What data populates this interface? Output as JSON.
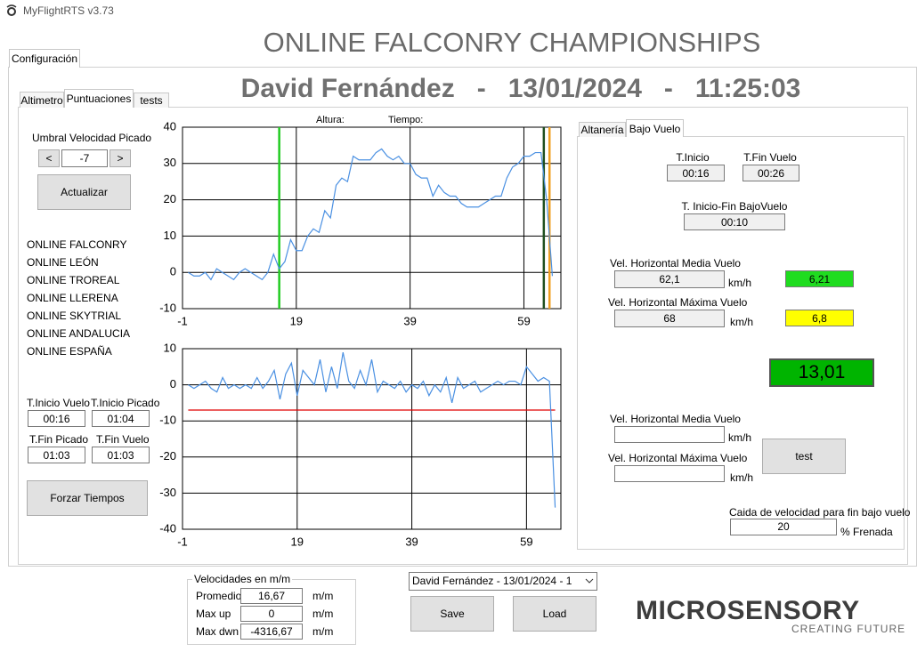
{
  "window": {
    "title": "MyFlightRTS v3.73"
  },
  "header": {
    "title": "ONLINE FALCONRY CHAMPIONSHIPS",
    "subtitle": "David Fernández   -   13/01/2024   -   11:25:03"
  },
  "main_tab": "Configuración",
  "tabs": [
    "Altimetro",
    "Puntuaciones",
    "tests"
  ],
  "left": {
    "threshold_label": "Umbral Velocidad Picado",
    "prev": "<",
    "threshold": "-7",
    "next": ">",
    "update": "Actualizar",
    "competitions": [
      "ONLINE FALCONRY",
      "ONLINE LEÓN",
      "ONLINE TROREAL",
      "ONLINE LLERENA",
      "ONLINE SKYTRIAL",
      "ONLINE ANDALUCIA",
      "ONLINE ESPAÑA"
    ],
    "times": [
      {
        "label": "T.Inicio Vuelo",
        "value": "00:16"
      },
      {
        "label": "T.Inicio Picado",
        "value": "01:04"
      },
      {
        "label": "T.Fin Picado",
        "value": "01:03"
      },
      {
        "label": "T.Fin Vuelo",
        "value": "01:03"
      }
    ],
    "force": "Forzar Tiempos"
  },
  "chart_data": [
    {
      "type": "line",
      "annotations": [
        "Altura:",
        "Tiempo:"
      ],
      "x": [
        0,
        1,
        2,
        3,
        4,
        5,
        6,
        7,
        8,
        9,
        10,
        11,
        12,
        13,
        14,
        15,
        16,
        17,
        18,
        19,
        20,
        21,
        22,
        23,
        24,
        25,
        26,
        27,
        28,
        29,
        30,
        31,
        32,
        33,
        34,
        35,
        36,
        37,
        38,
        39,
        40,
        41,
        42,
        43,
        44,
        45,
        46,
        47,
        48,
        49,
        50,
        51,
        52,
        53,
        54,
        55,
        56,
        57,
        58,
        59,
        60,
        61,
        62,
        63,
        64
      ],
      "series": [
        {
          "color": "#4a90e2",
          "values": [
            0,
            -1,
            -1,
            0,
            -2,
            1,
            0,
            -1,
            -2,
            0,
            1,
            0,
            -1,
            -2,
            0,
            5,
            1,
            3,
            9,
            6,
            6,
            10,
            12,
            11,
            17,
            15,
            24,
            26,
            25,
            32,
            31,
            31,
            31,
            33,
            34,
            32,
            31,
            32,
            30,
            30,
            27,
            26,
            26,
            21,
            24,
            22,
            21,
            21,
            19,
            18,
            18,
            18,
            19,
            20,
            21,
            21,
            26,
            29,
            30,
            32,
            32,
            33,
            33,
            20,
            -1
          ]
        }
      ],
      "markers": [
        {
          "x": 16,
          "color": "#22cc22"
        },
        {
          "x": 62.5,
          "color": "#1f4f1f"
        },
        {
          "x": 63.5,
          "color": "#f0a020"
        }
      ],
      "xlim": [
        -1,
        65.5
      ],
      "xticks": [
        -1,
        19,
        39,
        59
      ],
      "ylim": [
        -10,
        40
      ],
      "yticks": [
        -10,
        0,
        10,
        20,
        30,
        40
      ],
      "grid": true
    },
    {
      "type": "line",
      "x": [
        0,
        1,
        2,
        3,
        4,
        5,
        6,
        7,
        8,
        9,
        10,
        11,
        12,
        13,
        14,
        15,
        16,
        17,
        18,
        19,
        20,
        21,
        22,
        23,
        24,
        25,
        26,
        27,
        28,
        29,
        30,
        31,
        32,
        33,
        34,
        35,
        36,
        37,
        38,
        39,
        40,
        41,
        42,
        43,
        44,
        45,
        46,
        47,
        48,
        49,
        50,
        51,
        52,
        53,
        54,
        55,
        56,
        57,
        58,
        59,
        60,
        61,
        62,
        63,
        64
      ],
      "series": [
        {
          "color": "#4a90e2",
          "values": [
            0,
            -1,
            0,
            1,
            -1,
            -2,
            2,
            -1,
            0,
            -1,
            0,
            -1,
            2,
            -1,
            1,
            4,
            -4,
            3,
            6,
            -3,
            4,
            2,
            0,
            7,
            -2,
            5,
            -1,
            9,
            1,
            -1,
            4,
            0,
            7,
            -2,
            1,
            0,
            -1,
            1,
            -2,
            0,
            -1,
            1,
            -3,
            0,
            -2,
            2,
            -5,
            2,
            -1,
            0,
            1,
            -2,
            -1,
            0,
            1,
            0,
            1,
            1,
            0,
            5,
            3,
            1,
            2,
            1,
            -34
          ]
        }
      ],
      "threshold": {
        "value": -7,
        "color": "#e00000"
      },
      "xlim": [
        -1,
        65
      ],
      "xticks": [
        -1,
        19,
        39,
        59
      ],
      "ylim": [
        -40,
        10
      ],
      "yticks": [
        -40,
        -30,
        -20,
        -10,
        0,
        10
      ],
      "grid": true
    }
  ],
  "right": {
    "tabs": [
      "Altanería",
      "Bajo Vuelo"
    ],
    "start": {
      "label": "T.Inicio",
      "value": "00:16"
    },
    "end": {
      "label": "T.Fin Vuelo",
      "value": "00:26"
    },
    "duration": {
      "label": "T. Inicio-Fin BajoVuelo",
      "value": "00:10"
    },
    "mean": {
      "label": "Vel. Horizontal Media Vuelo",
      "value": "62,1",
      "unit": "km/h",
      "score": "6,21"
    },
    "max": {
      "label": "Vel. Horizontal Máxima Vuelo",
      "value": "68",
      "unit": "km/h",
      "score": "6,8"
    },
    "total": "13,01",
    "mean2": {
      "label": "Vel. Horizontal Media Vuelo",
      "unit": "km/h"
    },
    "max2": {
      "label": "Vel. Horizontal Máxima Vuelo",
      "unit": "km/h"
    },
    "test": "test",
    "drop_label": "Caida de velocidad para fin bajo vuelo",
    "drop": "20",
    "drop_unit": "% Frenada"
  },
  "speeds": {
    "title": "Velocidades en m/m",
    "rows": [
      {
        "label": "Promedio",
        "value": "16,67",
        "unit": "m/m"
      },
      {
        "label": "Max up",
        "value": "0",
        "unit": "m/m"
      },
      {
        "label": "Max dwn",
        "value": "-4316,67",
        "unit": "m/m"
      }
    ]
  },
  "session": "David Fernández   -   13/01/2024   -   1",
  "save": "Save",
  "load": "Load",
  "logo": {
    "name": "MICROSENSORY",
    "tagline": "CREATING FUTURE"
  }
}
